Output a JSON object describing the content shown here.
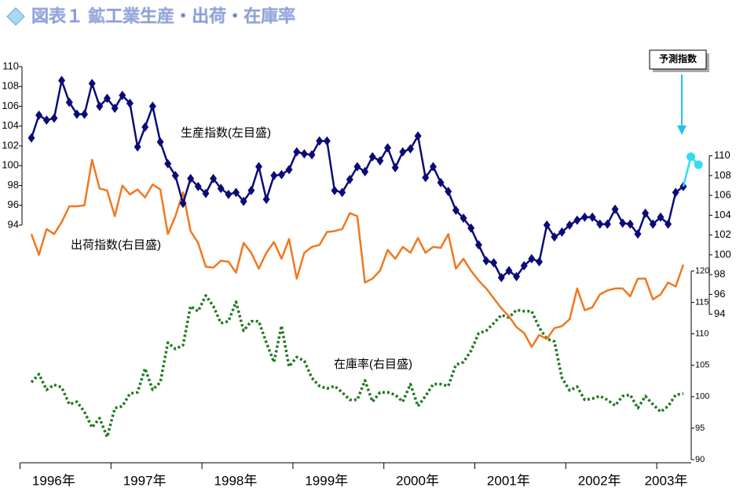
{
  "chart_data": {
    "type": "line",
    "title": "図表１ 鉱工業生産・出荷・在庫率",
    "x": [
      1996.125,
      1996.208,
      1996.292,
      1996.375,
      1996.458,
      1996.542,
      1996.625,
      1996.708,
      1996.792,
      1996.875,
      1996.958,
      1997.042,
      1997.125,
      1997.208,
      1997.292,
      1997.375,
      1997.458,
      1997.542,
      1997.625,
      1997.708,
      1997.792,
      1997.875,
      1997.958,
      1998.042,
      1998.125,
      1998.208,
      1998.292,
      1998.375,
      1998.458,
      1998.542,
      1998.625,
      1998.708,
      1998.792,
      1998.875,
      1998.958,
      1999.042,
      1999.125,
      1999.208,
      1999.292,
      1999.375,
      1999.458,
      1999.542,
      1999.625,
      1999.708,
      1999.792,
      1999.875,
      1999.958,
      2000.042,
      2000.125,
      2000.208,
      2000.292,
      2000.375,
      2000.458,
      2000.542,
      2000.625,
      2000.708,
      2000.792,
      2000.875,
      2000.958,
      2001.042,
      2001.125,
      2001.208,
      2001.292,
      2001.375,
      2001.458,
      2001.542,
      2001.625,
      2001.708,
      2001.792,
      2001.875,
      2001.958,
      2002.042,
      2002.125,
      2002.208,
      2002.292,
      2002.375,
      2002.458,
      2002.542,
      2002.625,
      2002.708,
      2002.792,
      2002.875,
      2002.958,
      2003.042,
      2003.125,
      2003.208,
      2003.292
    ],
    "xlim": [
      1996,
      2003.5
    ],
    "xticks": [
      {
        "value": 1996,
        "label": "1996年"
      },
      {
        "value": 1997,
        "label": "1997年"
      },
      {
        "value": 1998,
        "label": "1998年"
      },
      {
        "value": 1999,
        "label": "1999年"
      },
      {
        "value": 2000,
        "label": "2000年"
      },
      {
        "value": 2001,
        "label": "2001年"
      },
      {
        "value": 2002,
        "label": "2002年"
      },
      {
        "value": 2003,
        "label": "2003年"
      }
    ],
    "ylim": [
      70,
      110
    ],
    "yticks": [
      94,
      96,
      98,
      100,
      102,
      104,
      106,
      108,
      110
    ],
    "y2lim": [
      79,
      119
    ],
    "y2ticks": [
      94,
      96,
      98,
      100,
      102,
      104,
      106,
      108,
      110
    ],
    "y3lim": [
      89.5,
      152.5
    ],
    "y3ticks": [
      90,
      95,
      100,
      105,
      110,
      115,
      120
    ],
    "series": [
      {
        "name": "在庫率(右目盛)",
        "color": "#1f7a1f",
        "axis": "y3",
        "style": "dashed",
        "values": [
          102.3,
          103.6,
          101.1,
          101.9,
          101.5,
          98.8,
          99.2,
          97.6,
          95.1,
          96.6,
          93.6,
          98.2,
          98.5,
          100.5,
          100.7,
          104.5,
          101.1,
          102.3,
          108.6,
          107.6,
          108.2,
          114.4,
          113.6,
          116.1,
          114.4,
          111.7,
          112.0,
          115.1,
          110.5,
          112.0,
          112.0,
          108.6,
          105.5,
          111.3,
          104.8,
          106.3,
          105.7,
          103.0,
          101.7,
          101.3,
          101.7,
          100.7,
          99.5,
          99.5,
          102.6,
          99.2,
          100.7,
          100.7,
          100.3,
          99.2,
          102.0,
          98.5,
          100.1,
          102.0,
          102.0,
          101.7,
          105.1,
          105.5,
          107.3,
          110.1,
          110.5,
          111.7,
          113.0,
          112.6,
          113.8,
          113.6,
          113.6,
          111.0,
          109.2,
          108.8,
          103.0,
          101.0,
          101.6,
          99.5,
          99.7,
          100.1,
          99.5,
          98.6,
          100.1,
          100.3,
          98.2,
          100.1,
          98.8,
          97.6,
          98.5,
          100.3,
          100.5
        ]
      },
      {
        "name": "出荷指数(右目盛)",
        "color": "#f07820",
        "axis": "y2",
        "style": "solid",
        "values": [
          102.1,
          100.0,
          102.6,
          102.1,
          103.3,
          104.9,
          104.9,
          105.0,
          109.6,
          106.7,
          106.5,
          103.9,
          107.0,
          106.1,
          106.6,
          105.8,
          107.1,
          106.6,
          102.1,
          103.9,
          106.3,
          102.4,
          101.2,
          98.8,
          98.7,
          99.4,
          99.3,
          98.2,
          101.2,
          100.2,
          98.6,
          100.2,
          101.3,
          99.6,
          101.6,
          97.6,
          100.2,
          100.8,
          101.0,
          102.3,
          102.4,
          102.6,
          104.2,
          103.9,
          97.2,
          97.6,
          98.4,
          100.5,
          99.6,
          100.8,
          100.2,
          101.7,
          100.2,
          100.8,
          100.7,
          102.1,
          98.6,
          99.6,
          98.4,
          97.4,
          96.6,
          95.6,
          94.6,
          93.8,
          92.7,
          92.1,
          90.7,
          91.9,
          91.5,
          92.6,
          92.8,
          93.5,
          96.6,
          94.4,
          94.7,
          96.0,
          96.4,
          96.6,
          96.6,
          95.8,
          97.6,
          97.6,
          95.5,
          96.0,
          97.2,
          96.8,
          99.0
        ]
      },
      {
        "name": "生産指数(左目盛)",
        "color": "#0b0b78",
        "axis": "y",
        "style": "solid",
        "marker": "diamond",
        "values": [
          102.8,
          105.1,
          104.6,
          104.8,
          108.6,
          106.4,
          105.2,
          105.2,
          108.3,
          106.0,
          106.8,
          105.8,
          107.1,
          106.3,
          101.9,
          103.9,
          106.0,
          102.4,
          100.2,
          99.0,
          96.2,
          98.7,
          97.9,
          97.2,
          98.7,
          97.7,
          97.1,
          97.3,
          96.4,
          97.5,
          99.9,
          96.6,
          99.0,
          99.1,
          99.6,
          101.4,
          101.2,
          101.1,
          102.5,
          102.5,
          97.5,
          97.3,
          98.6,
          99.9,
          99.4,
          100.9,
          100.5,
          101.8,
          99.8,
          101.4,
          101.7,
          103.0,
          98.8,
          99.9,
          98.3,
          97.4,
          95.5,
          94.7,
          93.7,
          92.0,
          90.4,
          90.2,
          88.7,
          89.4,
          88.8,
          89.9,
          90.6,
          90.3,
          94.0,
          92.8,
          93.3,
          94.0,
          94.5,
          94.8,
          94.8,
          94.1,
          94.1,
          95.6,
          94.2,
          94.1,
          93.1,
          95.2,
          94.1,
          94.8,
          94.1,
          97.3,
          97.9
        ]
      },
      {
        "name": "予測指数",
        "color": "#33dcee",
        "axis": "y",
        "style": "solid",
        "marker": "circle",
        "x": [
          2003.375,
          2003.458
        ],
        "values": [
          100.9,
          100.1
        ]
      }
    ]
  }
}
